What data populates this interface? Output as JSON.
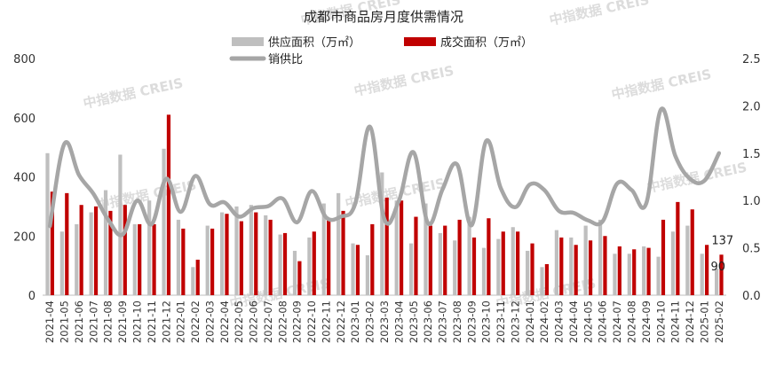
{
  "chart_data": {
    "type": "bar+line",
    "title": "成都市商品房月度供需情况",
    "watermark": "中指数据 CREIS",
    "categories": [
      "2021-04",
      "2021-05",
      "2021-06",
      "2021-07",
      "2021-08",
      "2021-09",
      "2021-10",
      "2021-11",
      "2021-12",
      "2022-01",
      "2022-02",
      "2022-03",
      "2022-04",
      "2022-05",
      "2022-06",
      "2022-07",
      "2022-08",
      "2022-09",
      "2022-10",
      "2022-11",
      "2022-12",
      "2023-01",
      "2023-02",
      "2023-03",
      "2023-04",
      "2023-05",
      "2023-06",
      "2023-07",
      "2023-08",
      "2023-09",
      "2023-10",
      "2023-11",
      "2023-12",
      "2024-01",
      "2024-02",
      "2024-03",
      "2024-04",
      "2024-05",
      "2024-06",
      "2024-07",
      "2024-08",
      "2024-09",
      "2024-10",
      "2024-11",
      "2024-12",
      "2025-01",
      "2025-02"
    ],
    "x_tick_labels": [
      "2021-04",
      "2021-05",
      "2021-06",
      "2021-07",
      "2021-08",
      "2021-09",
      "2021-10",
      "2021-11",
      "2021-12",
      "2022-01",
      "2022-02",
      "2022-03",
      "2022-04",
      "2022-05",
      "2022-06",
      "2022-07",
      "2022-08",
      "2022-09",
      "2022-10",
      "2022-11",
      "2022-12",
      "2023-01",
      "2023-02",
      "2023-03",
      "2023-04",
      "2023-05",
      "2023-06",
      "2023-07",
      "2023-08",
      "2023-09",
      "2023-10",
      "2023-11",
      "2023-12",
      "2024-01",
      "2024-02",
      "2024-03",
      "2024-04",
      "2024-05",
      "2024-06",
      "2024-07",
      "2024-08",
      "2024-09",
      "2024-10",
      "2024-11",
      "2024-12",
      "2025-01",
      "2025-02"
    ],
    "series": [
      {
        "name": "供应面积（万㎡）",
        "kind": "bar",
        "axis": "left",
        "color": "#bfbfbf",
        "values": [
          480,
          215,
          240,
          280,
          355,
          475,
          240,
          320,
          495,
          255,
          95,
          235,
          280,
          300,
          305,
          270,
          205,
          150,
          195,
          310,
          345,
          175,
          135,
          415,
          320,
          175,
          310,
          210,
          185,
          265,
          160,
          190,
          230,
          150,
          95,
          220,
          195,
          235,
          255,
          140,
          140,
          165,
          130,
          215,
          235,
          140,
          90
        ]
      },
      {
        "name": "成交面积（万㎡）",
        "kind": "bar",
        "axis": "left",
        "color": "#c00000",
        "values": [
          350,
          345,
          305,
          300,
          285,
          305,
          240,
          240,
          610,
          225,
          120,
          225,
          275,
          250,
          280,
          255,
          210,
          115,
          215,
          255,
          285,
          170,
          240,
          330,
          320,
          265,
          235,
          235,
          255,
          195,
          260,
          215,
          215,
          175,
          105,
          195,
          170,
          185,
          200,
          165,
          155,
          160,
          255,
          315,
          290,
          170,
          137
        ]
      },
      {
        "name": "销供比",
        "kind": "line",
        "axis": "right",
        "color": "#a6a6a6",
        "values": [
          0.73,
          1.6,
          1.27,
          1.07,
          0.8,
          0.64,
          1.0,
          0.75,
          1.23,
          0.88,
          1.26,
          0.96,
          0.98,
          0.83,
          0.92,
          0.94,
          1.02,
          0.77,
          1.1,
          0.82,
          0.83,
          0.97,
          1.78,
          0.8,
          1.0,
          1.51,
          0.76,
          1.12,
          1.38,
          0.74,
          1.63,
          1.13,
          0.93,
          1.17,
          1.11,
          0.89,
          0.87,
          0.79,
          0.78,
          1.18,
          1.11,
          0.97,
          1.96,
          1.47,
          1.23,
          1.21,
          1.5
        ]
      }
    ],
    "left_axis": {
      "min": 0,
      "max": 800,
      "ticks": [
        "0",
        "200",
        "400",
        "600",
        "800"
      ]
    },
    "right_axis": {
      "min": 0,
      "max": 2.5,
      "ticks": [
        "0.0",
        "0.5",
        "1.0",
        "1.5",
        "2.0",
        "2.5"
      ]
    },
    "data_labels": [
      {
        "category": "2025-02",
        "series": "成交面积（万㎡）",
        "text": "137"
      },
      {
        "category": "2025-02",
        "series": "供应面积（万㎡）",
        "text": "90"
      }
    ],
    "legend": {
      "position": "top",
      "items": [
        "供应面积（万㎡）",
        "成交面积（万㎡）",
        "销供比"
      ]
    },
    "grid": false
  }
}
